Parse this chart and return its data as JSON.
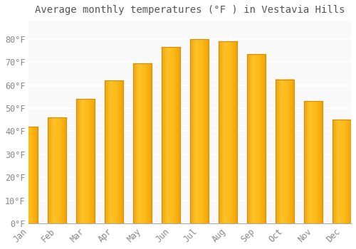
{
  "title": "Average monthly temperatures (°F ) in Vestavia Hills",
  "months": [
    "Jan",
    "Feb",
    "Mar",
    "Apr",
    "May",
    "Jun",
    "Jul",
    "Aug",
    "Sep",
    "Oct",
    "Nov",
    "Dec"
  ],
  "values": [
    42,
    46,
    54,
    62,
    69.5,
    76.5,
    80,
    79,
    73.5,
    62.5,
    53,
    45
  ],
  "bar_color_face": "#FDB913",
  "bar_color_edge": "#D4900A",
  "background_color": "#FFFFFF",
  "plot_bg_color": "#F9F9F9",
  "grid_color": "#FFFFFF",
  "text_color": "#888888",
  "title_color": "#555555",
  "ylim": [
    0,
    88
  ],
  "yticks": [
    0,
    10,
    20,
    30,
    40,
    50,
    60,
    70,
    80
  ],
  "title_fontsize": 10,
  "tick_fontsize": 8.5,
  "bar_width": 0.65
}
